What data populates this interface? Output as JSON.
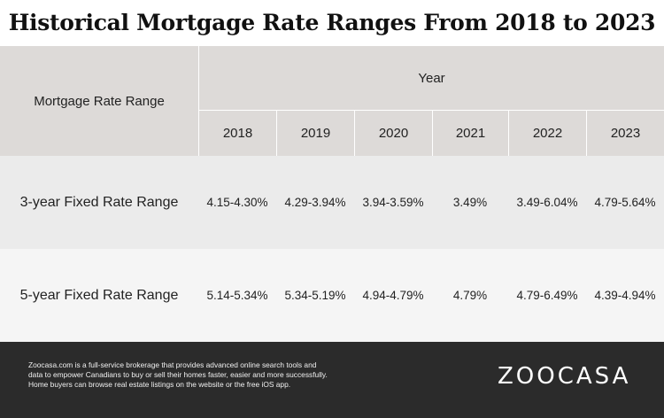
{
  "title": "Historical Mortgage Rate Ranges From 2018 to 2023",
  "table": {
    "row_header": "Mortgage Rate Range",
    "group_header": "Year",
    "years": [
      "2018",
      "2019",
      "2020",
      "2021",
      "2022",
      "2023"
    ],
    "rows": [
      {
        "label": "3-year Fixed Rate Range",
        "values": [
          "4.15-4.30%",
          "4.29-3.94%",
          "3.94-3.59%",
          "3.49%",
          "3.49-6.04%",
          "4.79-5.64%"
        ]
      },
      {
        "label": "5-year Fixed Rate Range",
        "values": [
          "5.14-5.34%",
          "5.34-5.19%",
          "4.94-4.79%",
          "4.79%",
          "4.79-6.49%",
          "4.39-4.94%"
        ]
      }
    ]
  },
  "footer": {
    "lines": [
      "Zoocasa.com is a full-service brokerage that provides advanced online search tools and",
      "data to empower Canadians to buy or sell their homes faster, easier and more successfully.",
      "Home buyers can browse real estate listings on the website or the free iOS app."
    ],
    "logo": "ZOOCASA"
  },
  "colors": {
    "header_bg": "#dddad8",
    "row1_bg": "#ebebeb",
    "row2_bg": "#f5f5f5",
    "footer_bg": "#2b2b2b"
  }
}
